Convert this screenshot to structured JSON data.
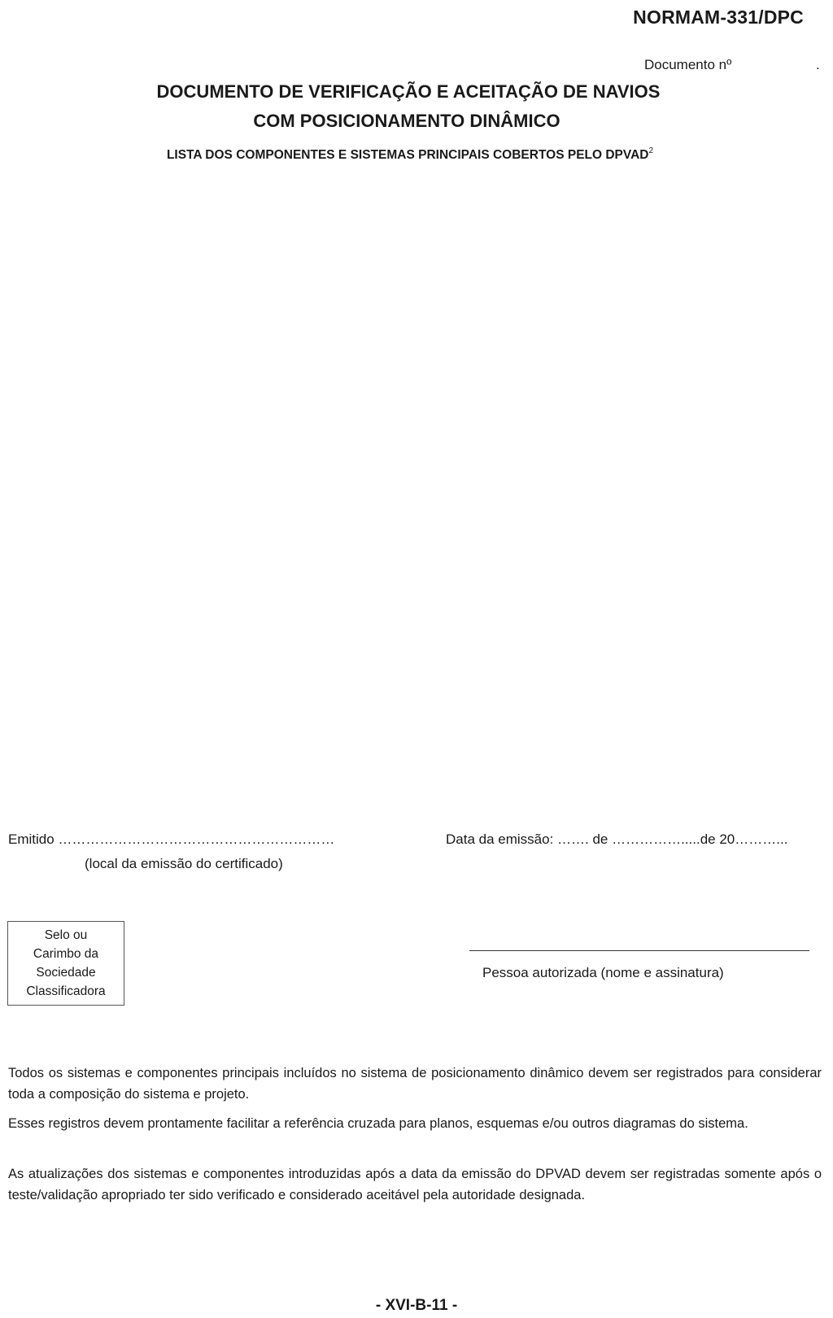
{
  "header": {
    "code": "NORMAM-331/DPC",
    "doc_number_label": "Documento nº",
    "doc_number_trailing": "."
  },
  "title": {
    "line1": "DOCUMENTO DE VERIFICAÇÃO E ACEITAÇÃO DE NAVIOS",
    "line2": "COM POSICIONAMENTO DINÂMICO",
    "subtitle": "LISTA DOS COMPONENTES E SISTEMAS PRINCIPAIS COBERTOS PELO DPVAD",
    "subtitle_footnote": "2"
  },
  "issuance": {
    "emitido": "Emitido ……………………………………………………",
    "emitido_caption": "(local da emissão do certificado)",
    "data_emissao": "Data da emissão: ……. de …………….....de 20………..."
  },
  "seal": {
    "lines": [
      "Selo ou",
      "Carimbo da",
      "Sociedade",
      "Classificadora"
    ]
  },
  "signature": {
    "caption": "Pessoa autorizada (nome e assinatura)"
  },
  "paragraphs": [
    "Todos os sistemas e componentes principais incluídos no sistema de posicionamento dinâmico devem ser registrados para considerar toda a composição do sistema e projeto.",
    "Esses registros devem prontamente facilitar a referência cruzada para planos, esquemas e/ou outros diagramas do sistema.",
    "As atualizações dos sistemas e componentes introduzidas após a data da emissão do DPVAD devem ser registradas somente após o teste/validação apropriado ter sido verificado e considerado aceitável pela autoridade designada."
  ],
  "footer": {
    "page_label": "- XVI-B-11 -"
  }
}
